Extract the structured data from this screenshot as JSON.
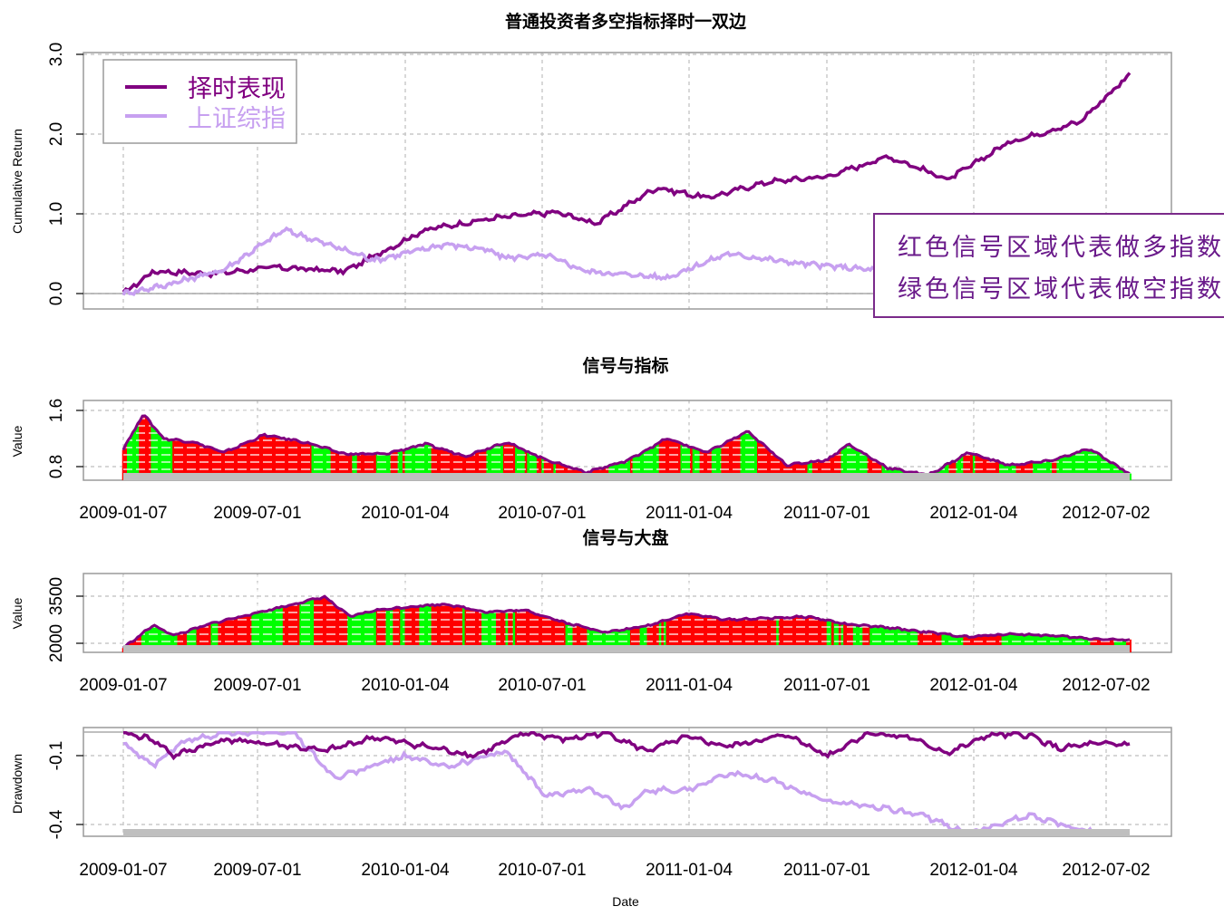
{
  "chart_data": [
    {
      "id": "p1",
      "type": "line",
      "title": "普通投资者多空指标择时一双边",
      "xlabel": "",
      "ylabel": "Cumulative Return",
      "ylim": [
        0,
        3.0
      ],
      "yticks": [
        "0.0",
        "1.0",
        "2.0",
        "3.0"
      ],
      "xticks": [],
      "grid": true,
      "legend": {
        "placement": "top-left",
        "entries": [
          "择时表现",
          "上证综指"
        ]
      },
      "series": [
        {
          "name": "择时表现",
          "color": "#800080",
          "x": [
            0,
            0.03,
            0.09,
            0.15,
            0.22,
            0.3,
            0.37,
            0.43,
            0.47,
            0.53,
            0.58,
            0.64,
            0.7,
            0.76,
            0.82,
            0.88,
            0.95,
            1.0
          ],
          "y": [
            0,
            0.28,
            0.25,
            0.33,
            0.28,
            0.8,
            0.95,
            1.02,
            0.88,
            1.33,
            1.2,
            1.4,
            1.47,
            1.72,
            1.43,
            1.9,
            2.15,
            2.75
          ]
        },
        {
          "name": "上证综指",
          "color": "#c7a0f0",
          "x": [
            0,
            0.04,
            0.1,
            0.16,
            0.25,
            0.32,
            0.36,
            0.38,
            0.42,
            0.46,
            0.54,
            0.6,
            0.67,
            0.76,
            0.79
          ],
          "y": [
            0,
            0.1,
            0.3,
            0.8,
            0.42,
            0.62,
            0.55,
            0.45,
            0.48,
            0.28,
            0.2,
            0.5,
            0.38,
            0.28,
            0.2
          ]
        }
      ]
    },
    {
      "id": "p2",
      "type": "area",
      "title": "信号与指标",
      "ylabel": "Value",
      "ylim": [
        0.6,
        1.6
      ],
      "yticks": [
        "0.8",
        "1.6"
      ],
      "xticks": [
        "2009-01-07",
        "2009-07-01",
        "2010-01-04",
        "2010-07-01",
        "2011-01-04",
        "2011-07-01",
        "2012-01-04",
        "2012-07-02"
      ],
      "grid": true,
      "signal_colors": {
        "long": "#ff0000",
        "short": "#00ff00",
        "line": "#800080"
      },
      "x": [
        0,
        0.02,
        0.04,
        0.07,
        0.1,
        0.14,
        0.18,
        0.22,
        0.26,
        0.3,
        0.34,
        0.38,
        0.42,
        0.46,
        0.5,
        0.54,
        0.58,
        0.62,
        0.66,
        0.7,
        0.72,
        0.76,
        0.8,
        0.84,
        0.88,
        0.92,
        0.96,
        1.0
      ],
      "y": [
        1.05,
        1.55,
        1.2,
        1.15,
        1.0,
        1.25,
        1.15,
        0.98,
        0.98,
        1.12,
        0.95,
        1.15,
        0.9,
        0.72,
        0.88,
        1.2,
        1.0,
        1.3,
        0.82,
        0.9,
        1.12,
        0.78,
        0.68,
        1.0,
        0.82,
        0.88,
        1.05,
        0.7
      ]
    },
    {
      "id": "p3",
      "type": "area",
      "title": "信号与大盘",
      "ylabel": "Value",
      "ylim": [
        1700,
        3600
      ],
      "yticks": [
        "2000",
        "3500"
      ],
      "xticks": [
        "2009-01-07",
        "2009-07-01",
        "2010-01-04",
        "2010-07-01",
        "2011-01-04",
        "2011-07-01",
        "2012-01-04",
        "2012-07-02"
      ],
      "grid": true,
      "signal_colors": {
        "long": "#ff0000",
        "short": "#00ff00",
        "line": "#800080"
      },
      "x": [
        0,
        0.03,
        0.05,
        0.09,
        0.15,
        0.2,
        0.225,
        0.25,
        0.28,
        0.32,
        0.36,
        0.4,
        0.44,
        0.48,
        0.52,
        0.56,
        0.6,
        0.64,
        0.68,
        0.72,
        0.76,
        0.8,
        0.84,
        0.88,
        0.92,
        0.96,
        1.0
      ],
      "y": [
        1850,
        2580,
        2250,
        2650,
        3100,
        3480,
        2850,
        3050,
        3150,
        3250,
        3000,
        3050,
        2650,
        2350,
        2550,
        2950,
        2750,
        2800,
        2850,
        2600,
        2500,
        2350,
        2200,
        2300,
        2250,
        2150,
        2100
      ]
    },
    {
      "id": "p4",
      "type": "line",
      "title": "",
      "xlabel": "Date",
      "ylabel": "Drawdown",
      "ylim": [
        -0.47,
        0.02
      ],
      "yticks": [
        "-0.4",
        "-0.1"
      ],
      "xticks": [
        "2009-01-07",
        "2009-07-01",
        "2010-01-04",
        "2010-07-01",
        "2011-01-04",
        "2011-07-01",
        "2012-01-04",
        "2012-07-02"
      ],
      "grid": true,
      "series": [
        {
          "name": "择时表现",
          "color": "#800080",
          "x": [
            0,
            0.03,
            0.05,
            0.1,
            0.15,
            0.2,
            0.25,
            0.3,
            0.35,
            0.4,
            0.44,
            0.48,
            0.52,
            0.56,
            0.6,
            0.66,
            0.7,
            0.74,
            0.78,
            0.82,
            0.86,
            0.9,
            0.93,
            0.96,
            1.0
          ],
          "y": [
            0,
            -0.03,
            -0.1,
            -0.03,
            -0.05,
            -0.08,
            -0.02,
            -0.06,
            -0.1,
            0,
            -0.03,
            0,
            -0.08,
            -0.02,
            -0.06,
            -0.01,
            -0.1,
            0,
            -0.02,
            -0.09,
            -0.01,
            -0.01,
            -0.07,
            -0.05,
            -0.05
          ]
        },
        {
          "name": "上证综指",
          "color": "#c7a0f0",
          "x": [
            0,
            0.03,
            0.06,
            0.1,
            0.17,
            0.21,
            0.28,
            0.32,
            0.38,
            0.42,
            0.46,
            0.5,
            0.52,
            0.56,
            0.6,
            0.64,
            0.7,
            0.76,
            0.8,
            0.84,
            0.9,
            0.94,
            1.0
          ],
          "y": [
            -0.05,
            -0.14,
            -0.04,
            0,
            0,
            -0.2,
            -0.1,
            -0.15,
            -0.08,
            -0.28,
            -0.24,
            -0.33,
            -0.25,
            -0.25,
            -0.18,
            -0.2,
            -0.3,
            -0.33,
            -0.37,
            -0.44,
            -0.36,
            -0.41,
            -0.47
          ]
        }
      ]
    }
  ],
  "annotation": {
    "lines": [
      "红色信号区域代表做多指数",
      "绿色信号区域代表做空指数"
    ]
  },
  "x_axis_label": "Date"
}
